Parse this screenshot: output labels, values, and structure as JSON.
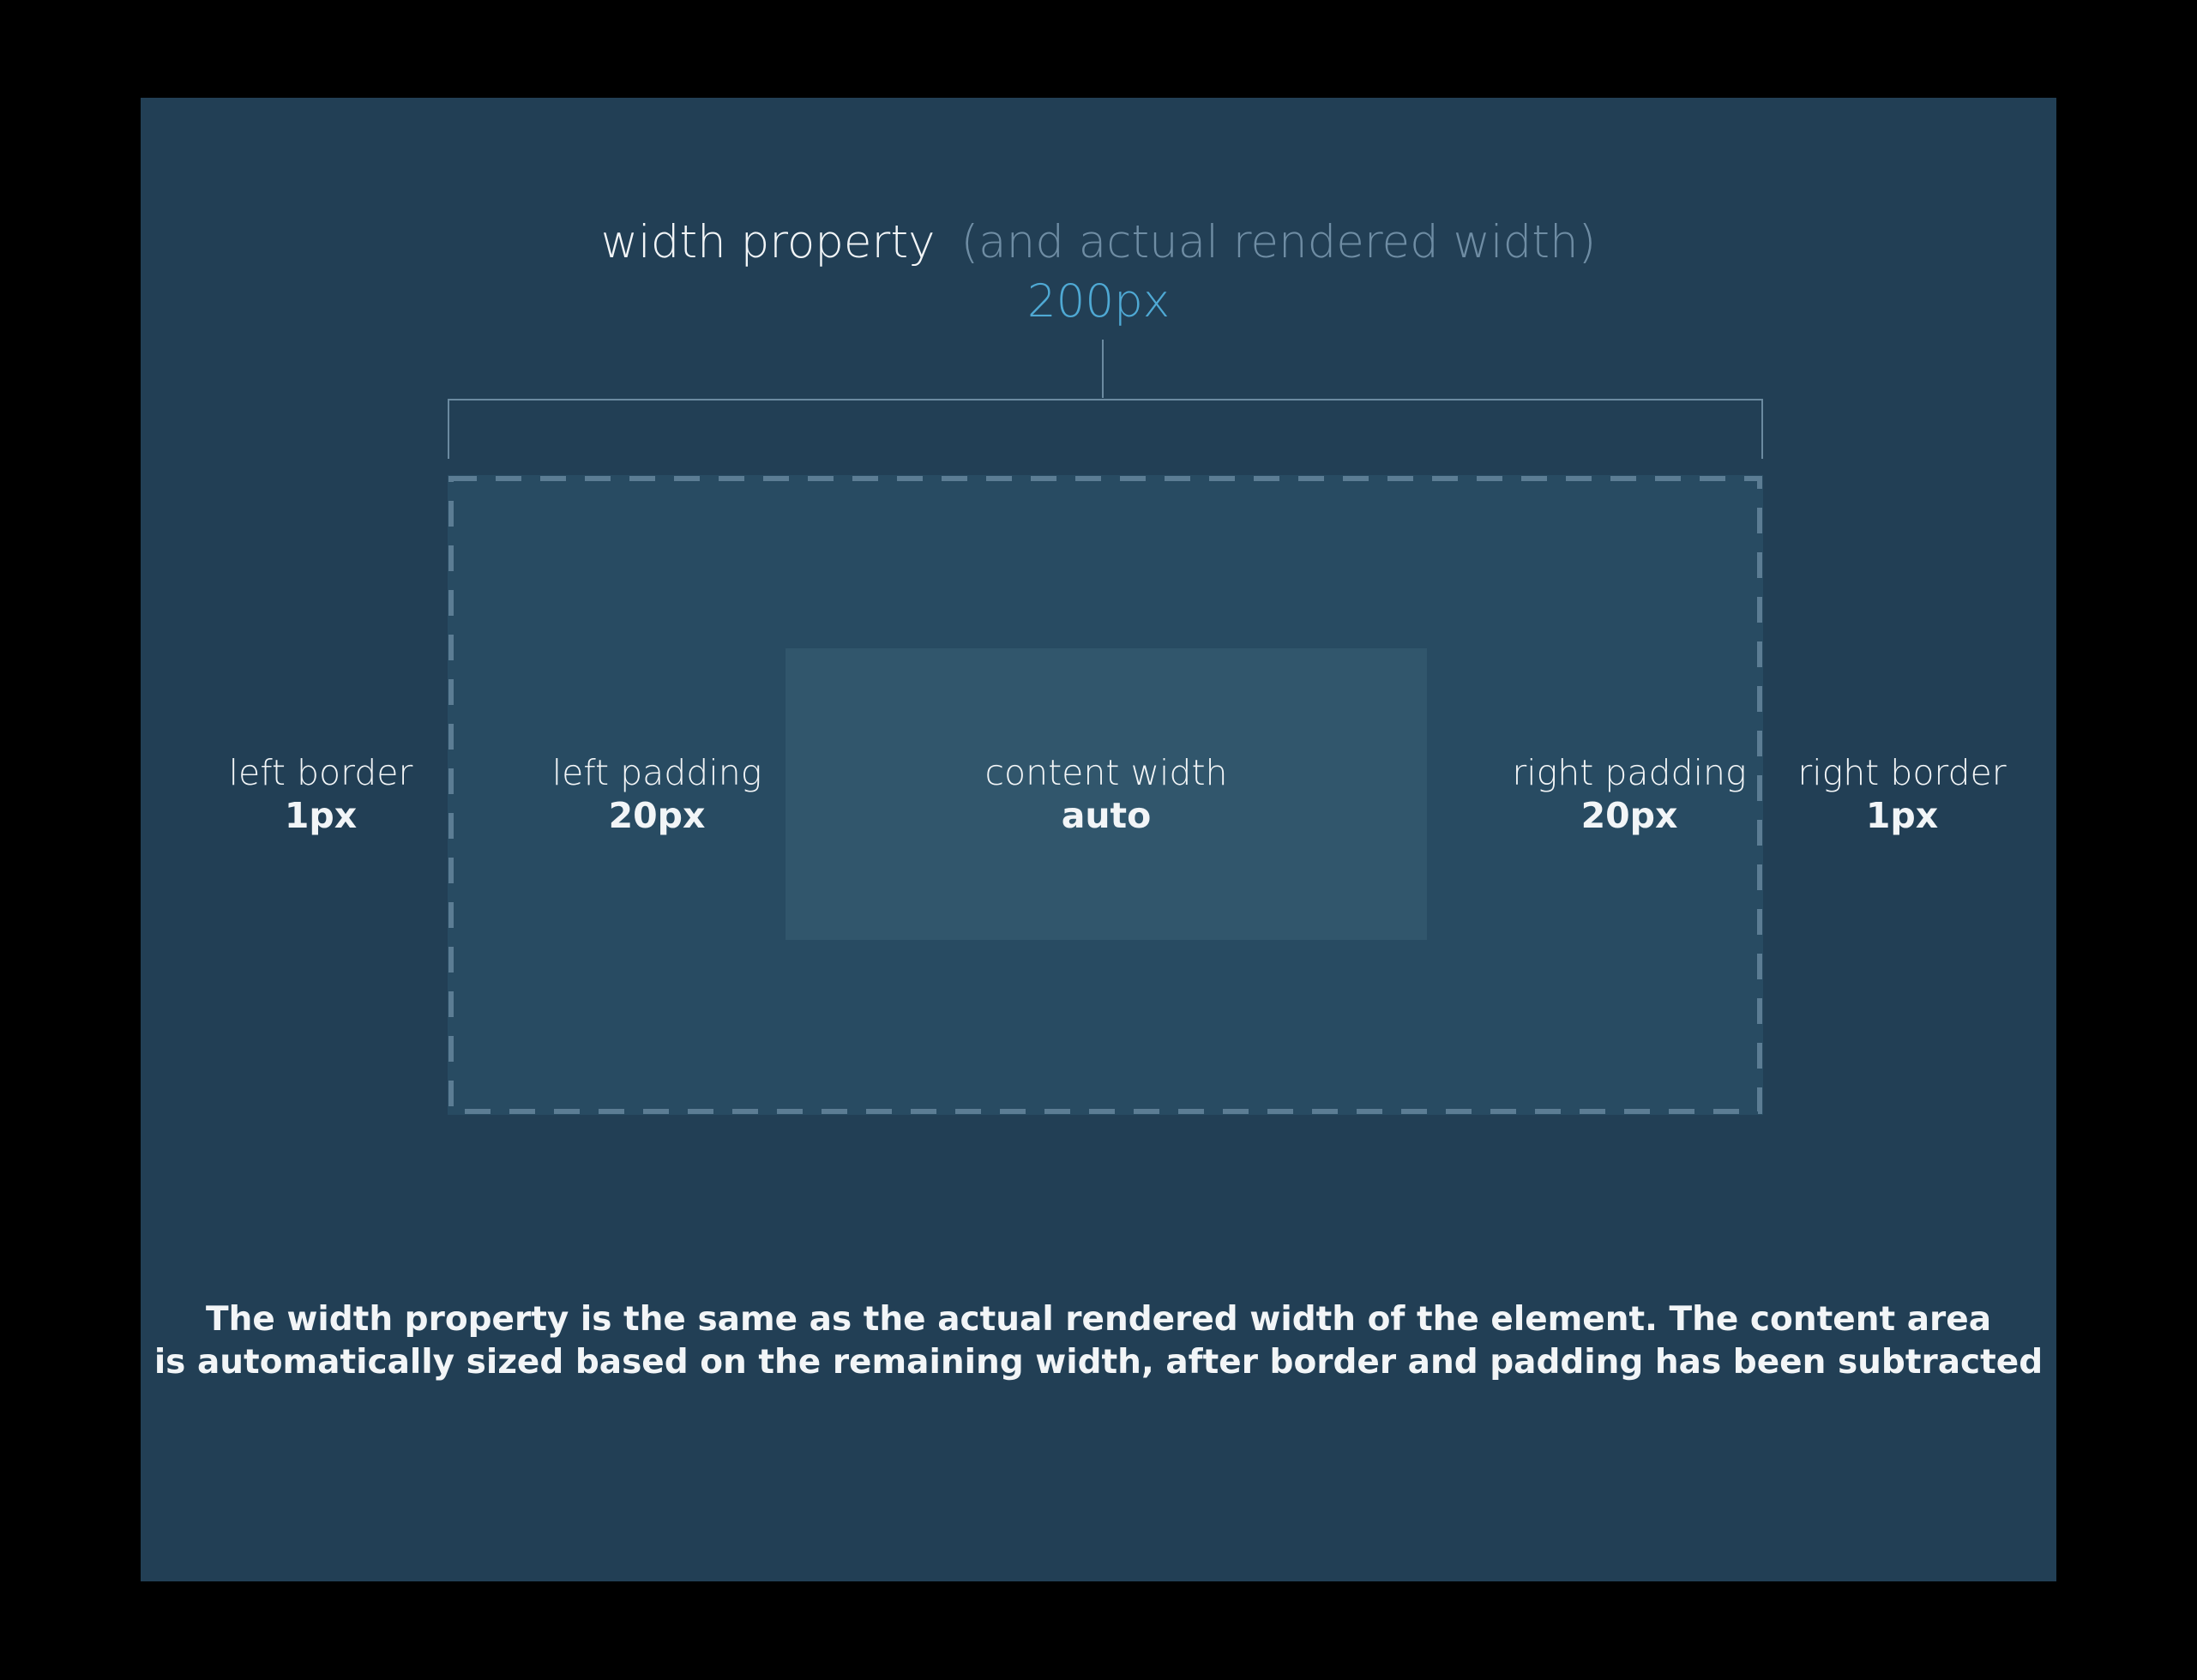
{
  "heading": {
    "main": "width property",
    "sub": "(and actual rendered width)",
    "value": "200px"
  },
  "labels": {
    "left_border": {
      "name": "left border",
      "value": "1px"
    },
    "left_padding": {
      "name": "left padding",
      "value": "20px"
    },
    "content": {
      "name": "content width",
      "value": "auto"
    },
    "right_padding": {
      "name": "right padding",
      "value": "20px"
    },
    "right_border": {
      "name": "right border",
      "value": "1px"
    }
  },
  "caption": {
    "line1": "The width property is the same as the actual rendered width of the element. The content area",
    "line2": "is automatically sized based on the remaining width, after border and padding has been subtracted"
  },
  "colors": {
    "outer_background": "#000000",
    "panel_background": "#223f55",
    "padding_area": "#284b62",
    "content_area": "#31566c",
    "dashed_border": "#5c7d94",
    "accent_value": "#4fa9d4",
    "muted_text": "#6f8da4",
    "text": "#f2f5f7"
  }
}
